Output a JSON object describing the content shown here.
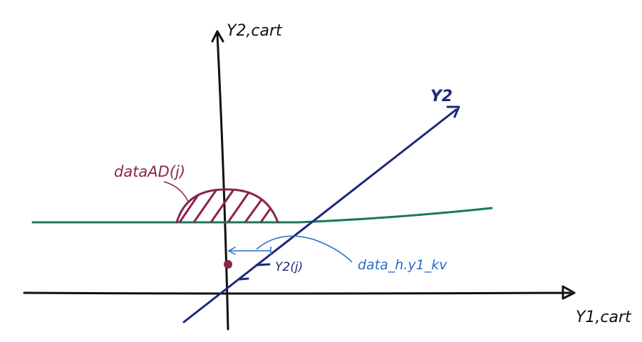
{
  "labels": {
    "y1_axis": "Y1,cart",
    "y2_axis": "Y2,cart",
    "line_y2": "Y2",
    "region": "dataAD(j)",
    "point": "Y2(j)",
    "annotation": "data_h.y1_kv"
  },
  "colors": {
    "axes": "#111111",
    "y2_line": "#1f2a7a",
    "horizontal_line": "#1a7a5a",
    "region": "#8a2450",
    "annotation": "#2a6bbf"
  }
}
